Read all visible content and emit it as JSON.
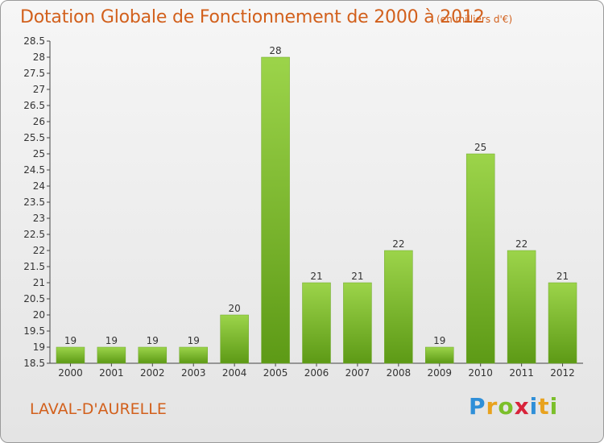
{
  "title": "Dotation Globale de Fonctionnement de 2000 à 2012",
  "unit": "(en milliers d'€)",
  "commune": "LAVAL-D'AURELLE",
  "brand": {
    "letters": [
      "P",
      "r",
      "o",
      "x",
      "i",
      "t",
      "i"
    ],
    "colors": [
      "#2f8fd8",
      "#e8a21e",
      "#7bbf2a",
      "#d8233a",
      "#2f8fd8",
      "#e8a21e",
      "#7bbf2a"
    ]
  },
  "colors": {
    "bar_light": "#9cd44a",
    "bar_dark": "#5d9a16",
    "text_accent": "#d2601c"
  },
  "chart_data": {
    "type": "bar",
    "title": "Dotation Globale de Fonctionnement de 2000 à 2012",
    "subtitle": "(en milliers d'€)",
    "xlabel": "",
    "ylabel": "",
    "categories": [
      "2000",
      "2001",
      "2002",
      "2003",
      "2004",
      "2005",
      "2006",
      "2007",
      "2008",
      "2009",
      "2010",
      "2011",
      "2012"
    ],
    "values": [
      19,
      19,
      19,
      19,
      20,
      28,
      21,
      21,
      22,
      19,
      25,
      22,
      21
    ],
    "ylim": [
      18.5,
      28.5
    ],
    "yticks": [
      "18.5",
      "19",
      "19.5",
      "20",
      "20.5",
      "21",
      "21.5",
      "22",
      "22.5",
      "23",
      "23.5",
      "24",
      "24.5",
      "25",
      "25.5",
      "26",
      "26.5",
      "27",
      "27.5",
      "28",
      "28.5"
    ],
    "grid": false,
    "legend": "none"
  }
}
